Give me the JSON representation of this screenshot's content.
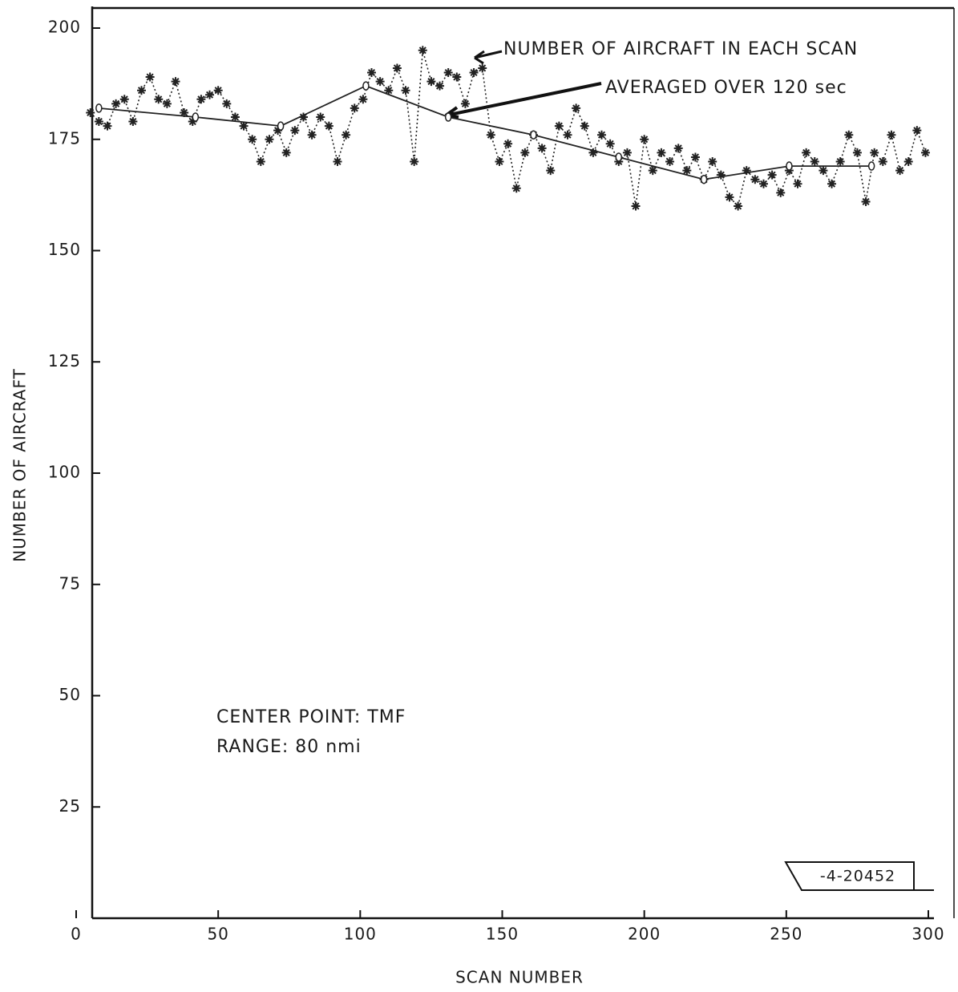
{
  "chart_data": {
    "type": "line",
    "xlabel": "SCAN NUMBER",
    "ylabel": "NUMBER OF AIRCRAFT",
    "annotations": [
      "NUMBER OF AIRCRAFT IN EACH SCAN",
      "AVERAGED OVER 120 sec",
      "CENTER POINT:  TMF",
      "RANGE:  80 nmi",
      "-4-20452"
    ],
    "xlim": [
      0,
      300
    ],
    "xticks": [
      0,
      50,
      100,
      150,
      200,
      250,
      300
    ],
    "ylim": [
      0,
      200
    ],
    "yticks": [
      25,
      50,
      75,
      100,
      125,
      150,
      175,
      200
    ],
    "grid": false,
    "series": [
      {
        "name": "NUMBER OF AIRCRAFT IN EACH SCAN",
        "color": "#222222",
        "style": "dotted",
        "marker": "asterisk",
        "x": [
          5,
          8,
          11,
          14,
          17,
          20,
          23,
          26,
          29,
          32,
          35,
          38,
          41,
          44,
          47,
          50,
          53,
          56,
          59,
          62,
          65,
          68,
          71,
          74,
          77,
          80,
          83,
          86,
          89,
          92,
          95,
          98,
          101,
          104,
          107,
          110,
          113,
          116,
          119,
          122,
          125,
          128,
          131,
          134,
          137,
          140,
          143,
          146,
          149,
          152,
          155,
          158,
          161,
          164,
          167,
          170,
          173,
          176,
          179,
          182,
          185,
          188,
          191,
          194,
          197,
          200,
          203,
          206,
          209,
          212,
          215,
          218,
          221,
          224,
          227,
          230,
          233,
          236,
          239,
          242,
          245,
          248,
          251,
          254,
          257,
          260,
          263,
          266,
          269,
          272,
          275,
          278,
          281,
          284,
          287,
          290,
          293,
          296,
          299
        ],
        "values": [
          181,
          179,
          178,
          183,
          184,
          179,
          186,
          189,
          184,
          183,
          188,
          181,
          179,
          184,
          185,
          186,
          183,
          180,
          178,
          175,
          170,
          175,
          177,
          172,
          177,
          180,
          176,
          180,
          178,
          170,
          176,
          182,
          184,
          190,
          188,
          186,
          191,
          186,
          170,
          195,
          188,
          187,
          190,
          189,
          183,
          190,
          191,
          176,
          170,
          174,
          164,
          172,
          176,
          173,
          168,
          178,
          176,
          182,
          178,
          172,
          176,
          174,
          170,
          172,
          160,
          175,
          168,
          172,
          170,
          173,
          168,
          171,
          166,
          170,
          167,
          162,
          160,
          168,
          166,
          165,
          167,
          163,
          168,
          165,
          172,
          170,
          168,
          165,
          170,
          176,
          172,
          161,
          172,
          170,
          176,
          168,
          170,
          177,
          172
        ]
      },
      {
        "name": "AVERAGED OVER 120 sec",
        "color": "#222222",
        "style": "solid",
        "marker": "circle",
        "x": [
          8,
          42,
          72,
          102,
          131,
          161,
          191,
          221,
          251,
          280
        ],
        "values": [
          182,
          180,
          178,
          187,
          180,
          176,
          171,
          166,
          169,
          169
        ]
      }
    ]
  }
}
